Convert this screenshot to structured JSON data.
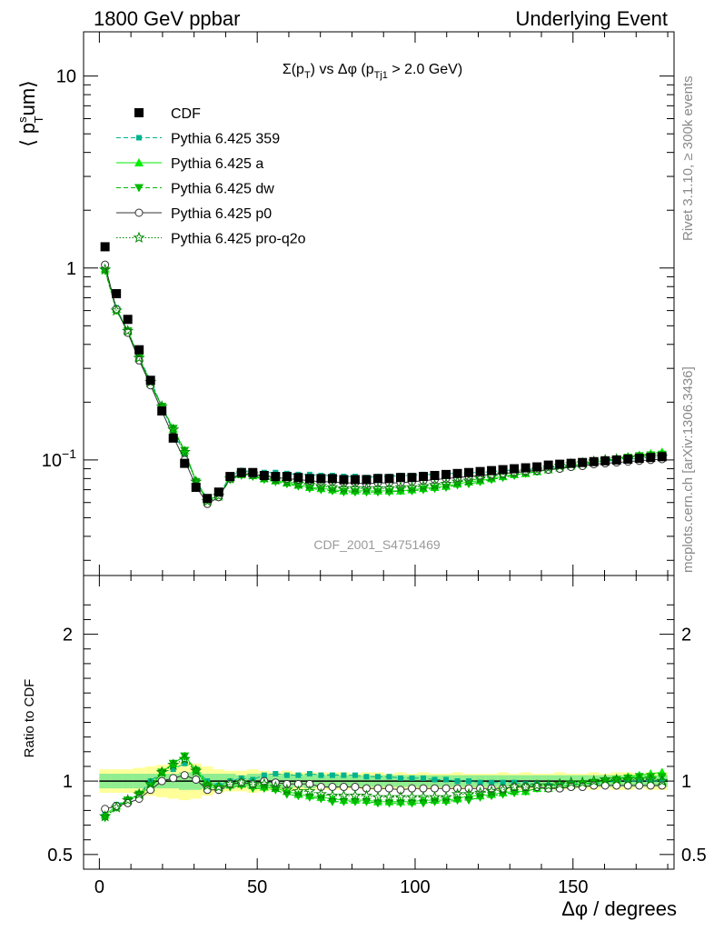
{
  "header": {
    "left": "1800 GeV ppbar",
    "right": "Underlying Event"
  },
  "side": {
    "rivet": "Rivet 3.1.10, ≥ 300k events",
    "mcplots": "mcplots.cern.ch [arXiv:1306.3436]"
  },
  "watermark": "CDF_2001_S4751469",
  "chart_data": [
    {
      "type": "scatter",
      "title": "Σ(p_T) vs Δφ (p_Tj1 > 2.0 GeV)",
      "title_parts": {
        "sigma": "Σ(p",
        "t1": "T",
        "mid": ") vs Δφ (p",
        "t2": "Tj1",
        "end": " > 2.0 GeV)"
      },
      "ylabel": "⟨ p_T^sum ⟩",
      "ylabel_parts": {
        "a": "⟨ p",
        "sup": "s",
        "sub": "T",
        "b": "um⟩"
      },
      "yscale": "log",
      "ylim": [
        0.025,
        17
      ],
      "xlim": [
        -5,
        182
      ],
      "yticks": [
        {
          "v": 0.1,
          "base": "10",
          "exp": "−1"
        },
        {
          "v": 1,
          "label": "1"
        },
        {
          "v": 10,
          "label": "10"
        }
      ],
      "legend": {
        "position": "top-left",
        "entries": [
          {
            "key": "cdf",
            "label": "CDF"
          },
          {
            "key": "p359",
            "label": "Pythia 6.425 359"
          },
          {
            "key": "pa",
            "label": "Pythia 6.425 a"
          },
          {
            "key": "pdw",
            "label": "Pythia 6.425 dw"
          },
          {
            "key": "pp0",
            "label": "Pythia 6.425 p0"
          },
          {
            "key": "pq2o",
            "label": "Pythia 6.425 pro-q2o"
          }
        ]
      },
      "x": [
        1.8,
        5.4,
        9,
        12.6,
        16.2,
        19.8,
        23.4,
        27,
        30.6,
        34.2,
        37.8,
        41.4,
        45,
        48.6,
        52.2,
        55.8,
        59.4,
        63,
        66.6,
        70.2,
        73.8,
        77.4,
        81,
        84.6,
        88.2,
        91.8,
        95.4,
        99,
        102.6,
        106.2,
        109.8,
        113.4,
        117,
        120.6,
        124.2,
        127.8,
        131.4,
        135,
        138.6,
        142.2,
        145.8,
        149.4,
        153,
        156.6,
        160.2,
        163.8,
        167.4,
        171,
        174.6,
        178.2
      ],
      "series": [
        {
          "name": "CDF",
          "key": "cdf",
          "color": "#000000",
          "values": [
            1.29,
            0.735,
            0.54,
            0.375,
            0.26,
            0.18,
            0.13,
            0.096,
            0.072,
            0.063,
            0.068,
            0.082,
            0.086,
            0.086,
            0.083,
            0.082,
            0.082,
            0.081,
            0.08,
            0.08,
            0.08,
            0.079,
            0.079,
            0.079,
            0.08,
            0.08,
            0.081,
            0.081,
            0.082,
            0.083,
            0.084,
            0.085,
            0.086,
            0.087,
            0.088,
            0.089,
            0.09,
            0.091,
            0.092,
            0.094,
            0.095,
            0.096,
            0.097,
            0.098,
            0.099,
            0.1,
            0.101,
            0.102,
            0.103,
            0.104
          ]
        },
        {
          "name": "Pythia 6.425 359",
          "key": "p359",
          "color": "#00b38f",
          "values": [
            1.02,
            0.62,
            0.47,
            0.34,
            0.26,
            0.19,
            0.14,
            0.108,
            0.078,
            0.063,
            0.066,
            0.082,
            0.088,
            0.087,
            0.086,
            0.086,
            0.085,
            0.084,
            0.084,
            0.083,
            0.083,
            0.082,
            0.082,
            0.081,
            0.082,
            0.082,
            0.083,
            0.083,
            0.084,
            0.084,
            0.085,
            0.085,
            0.086,
            0.086,
            0.087,
            0.088,
            0.089,
            0.089,
            0.09,
            0.091,
            0.092,
            0.094,
            0.095,
            0.096,
            0.098,
            0.1,
            0.101,
            0.102,
            0.103,
            0.104
          ]
        },
        {
          "name": "Pythia 6.425 a",
          "key": "pa",
          "color": "#00ee00",
          "values": [
            0.99,
            0.61,
            0.47,
            0.34,
            0.25,
            0.19,
            0.145,
            0.112,
            0.078,
            0.062,
            0.065,
            0.08,
            0.084,
            0.083,
            0.08,
            0.078,
            0.076,
            0.074,
            0.072,
            0.071,
            0.07,
            0.069,
            0.069,
            0.069,
            0.069,
            0.069,
            0.069,
            0.07,
            0.071,
            0.072,
            0.073,
            0.075,
            0.077,
            0.078,
            0.08,
            0.082,
            0.084,
            0.085,
            0.087,
            0.089,
            0.091,
            0.093,
            0.095,
            0.097,
            0.099,
            0.101,
            0.104,
            0.106,
            0.108,
            0.11
          ]
        },
        {
          "name": "Pythia 6.425 dw",
          "key": "pdw",
          "color": "#00bb00",
          "values": [
            0.97,
            0.6,
            0.47,
            0.34,
            0.25,
            0.19,
            0.146,
            0.112,
            0.077,
            0.061,
            0.064,
            0.079,
            0.083,
            0.082,
            0.079,
            0.077,
            0.075,
            0.073,
            0.071,
            0.07,
            0.069,
            0.068,
            0.068,
            0.068,
            0.068,
            0.068,
            0.069,
            0.069,
            0.07,
            0.071,
            0.072,
            0.074,
            0.075,
            0.077,
            0.079,
            0.081,
            0.083,
            0.085,
            0.087,
            0.089,
            0.091,
            0.093,
            0.095,
            0.097,
            0.099,
            0.101,
            0.103,
            0.105,
            0.106,
            0.107
          ]
        },
        {
          "name": "Pythia 6.425 p0",
          "key": "pp0",
          "color": "#333333",
          "values": [
            1.04,
            0.61,
            0.46,
            0.33,
            0.245,
            0.18,
            0.132,
            0.1,
            0.073,
            0.059,
            0.064,
            0.08,
            0.085,
            0.084,
            0.083,
            0.081,
            0.08,
            0.079,
            0.078,
            0.077,
            0.077,
            0.076,
            0.076,
            0.075,
            0.076,
            0.076,
            0.076,
            0.077,
            0.078,
            0.079,
            0.08,
            0.081,
            0.082,
            0.083,
            0.084,
            0.085,
            0.086,
            0.087,
            0.088,
            0.089,
            0.09,
            0.092,
            0.093,
            0.095,
            0.096,
            0.097,
            0.098,
            0.099,
            0.1,
            0.101
          ]
        },
        {
          "name": "Pythia 6.425 pro-q2o",
          "key": "pq2o",
          "color": "#008800",
          "values": [
            0.98,
            0.6,
            0.47,
            0.34,
            0.255,
            0.19,
            0.144,
            0.11,
            0.077,
            0.061,
            0.065,
            0.08,
            0.085,
            0.084,
            0.081,
            0.079,
            0.077,
            0.075,
            0.074,
            0.073,
            0.072,
            0.071,
            0.071,
            0.071,
            0.071,
            0.071,
            0.072,
            0.072,
            0.073,
            0.074,
            0.075,
            0.077,
            0.078,
            0.08,
            0.082,
            0.084,
            0.086,
            0.087,
            0.089,
            0.091,
            0.093,
            0.095,
            0.096,
            0.098,
            0.1,
            0.101,
            0.102,
            0.103,
            0.104,
            0.104
          ]
        }
      ]
    },
    {
      "type": "scatter",
      "ylabel": "Ratio to CDF",
      "xlabel": "Δφ / degrees",
      "ylim": [
        0.4,
        2.4
      ],
      "xlim": [
        -5,
        182
      ],
      "xticks": [
        0,
        50,
        100,
        150
      ],
      "yticks": [
        {
          "v": 0.5,
          "label": "0.5"
        },
        {
          "v": 1,
          "label": "1"
        },
        {
          "v": 2,
          "label": "2"
        }
      ],
      "bands": {
        "inner_color": "#90ee90",
        "outer_color": "#ffff99",
        "inner": [
          0.05,
          0.05,
          0.05,
          0.05,
          0.05,
          0.05,
          0.05,
          0.06,
          0.06,
          0.05,
          0.05,
          0.05,
          0.04,
          0.05,
          0.05,
          0.04,
          0.05,
          0.04,
          0.05,
          0.04,
          0.05,
          0.04,
          0.04,
          0.04,
          0.04,
          0.04,
          0.04,
          0.04,
          0.04,
          0.04,
          0.04,
          0.04,
          0.04,
          0.04,
          0.04,
          0.04,
          0.04,
          0.04,
          0.04,
          0.04,
          0.04,
          0.04,
          0.04,
          0.04,
          0.04,
          0.04,
          0.04,
          0.04,
          0.04,
          0.04
        ],
        "outer": [
          0.08,
          0.08,
          0.08,
          0.09,
          0.1,
          0.11,
          0.12,
          0.13,
          0.12,
          0.1,
          0.08,
          0.07,
          0.07,
          0.08,
          0.07,
          0.06,
          0.07,
          0.06,
          0.06,
          0.06,
          0.06,
          0.06,
          0.05,
          0.06,
          0.06,
          0.05,
          0.06,
          0.05,
          0.06,
          0.05,
          0.05,
          0.06,
          0.05,
          0.05,
          0.05,
          0.06,
          0.05,
          0.06,
          0.05,
          0.05,
          0.06,
          0.05,
          0.05,
          0.06,
          0.05,
          0.06,
          0.06,
          0.05,
          0.06,
          0.06
        ]
      },
      "series": [
        {
          "key": "p359",
          "values": [
            0.79,
            0.84,
            0.87,
            0.91,
            1.0,
            1.06,
            1.08,
            1.12,
            1.08,
            1.0,
            0.97,
            1.0,
            1.02,
            1.01,
            1.04,
            1.05,
            1.04,
            1.04,
            1.05,
            1.04,
            1.04,
            1.04,
            1.04,
            1.03,
            1.03,
            1.03,
            1.02,
            1.02,
            1.02,
            1.01,
            1.01,
            1.0,
            1.0,
            0.99,
            0.99,
            0.99,
            0.99,
            0.98,
            0.98,
            0.97,
            0.97,
            0.98,
            0.98,
            0.98,
            0.99,
            1.0,
            1.0,
            1.0,
            1.0,
            1.0
          ]
        },
        {
          "key": "pa",
          "values": [
            0.77,
            0.83,
            0.87,
            0.91,
            0.96,
            1.06,
            1.12,
            1.17,
            1.08,
            0.98,
            0.96,
            0.98,
            0.98,
            0.97,
            0.96,
            0.95,
            0.93,
            0.91,
            0.9,
            0.89,
            0.88,
            0.87,
            0.87,
            0.87,
            0.86,
            0.86,
            0.86,
            0.86,
            0.87,
            0.87,
            0.87,
            0.88,
            0.9,
            0.9,
            0.91,
            0.92,
            0.93,
            0.93,
            0.95,
            0.95,
            0.96,
            0.97,
            0.98,
            0.99,
            1.0,
            1.01,
            1.03,
            1.04,
            1.05,
            1.06
          ]
        },
        {
          "key": "pdw",
          "values": [
            0.75,
            0.82,
            0.87,
            0.91,
            0.96,
            1.06,
            1.12,
            1.17,
            1.07,
            0.97,
            0.94,
            0.96,
            0.97,
            0.95,
            0.95,
            0.94,
            0.91,
            0.9,
            0.89,
            0.88,
            0.86,
            0.86,
            0.86,
            0.86,
            0.85,
            0.85,
            0.85,
            0.85,
            0.85,
            0.86,
            0.86,
            0.87,
            0.87,
            0.89,
            0.9,
            0.91,
            0.92,
            0.93,
            0.95,
            0.95,
            0.96,
            0.97,
            0.98,
            0.99,
            1.0,
            1.01,
            1.02,
            1.03,
            1.03,
            1.03
          ]
        },
        {
          "key": "pp0",
          "values": [
            0.81,
            0.83,
            0.85,
            0.88,
            0.94,
            1.0,
            1.02,
            1.04,
            1.01,
            0.94,
            0.94,
            0.98,
            0.99,
            0.98,
            1.0,
            0.99,
            0.98,
            0.98,
            0.98,
            0.96,
            0.96,
            0.96,
            0.96,
            0.95,
            0.95,
            0.95,
            0.94,
            0.95,
            0.95,
            0.95,
            0.95,
            0.95,
            0.95,
            0.95,
            0.95,
            0.95,
            0.96,
            0.96,
            0.96,
            0.95,
            0.95,
            0.96,
            0.96,
            0.97,
            0.97,
            0.97,
            0.97,
            0.97,
            0.97,
            0.97
          ]
        },
        {
          "key": "pq2o",
          "values": [
            0.76,
            0.82,
            0.87,
            0.91,
            0.98,
            1.06,
            1.11,
            1.15,
            1.07,
            0.97,
            0.96,
            0.98,
            0.99,
            0.98,
            0.98,
            0.96,
            0.94,
            0.93,
            0.93,
            0.91,
            0.9,
            0.9,
            0.9,
            0.9,
            0.89,
            0.89,
            0.89,
            0.89,
            0.89,
            0.89,
            0.89,
            0.91,
            0.91,
            0.92,
            0.93,
            0.94,
            0.96,
            0.96,
            0.97,
            0.97,
            0.98,
            0.99,
            0.99,
            1.0,
            1.01,
            1.01,
            1.01,
            1.01,
            1.01,
            1.0
          ]
        }
      ]
    }
  ]
}
